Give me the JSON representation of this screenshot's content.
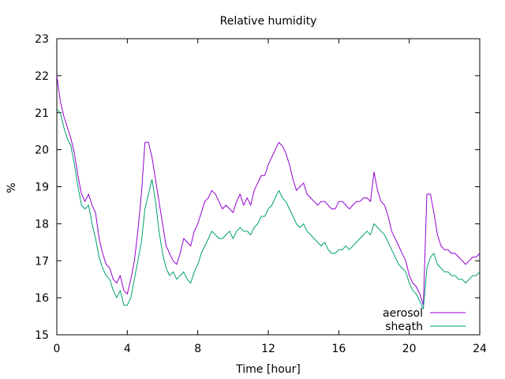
{
  "chart_data": {
    "type": "line",
    "title": "Relative humidity",
    "xlabel": "Time [hour]",
    "ylabel": "%",
    "xlim": [
      0,
      24
    ],
    "ylim": [
      15,
      23
    ],
    "xticks": [
      0,
      4,
      8,
      12,
      16,
      20,
      24
    ],
    "yticks": [
      15,
      16,
      17,
      18,
      19,
      20,
      21,
      22,
      23
    ],
    "grid": false,
    "legend_position": "bottom-right",
    "series": [
      {
        "name": "aerosol",
        "color": "#9400d3",
        "x": [
          0.0,
          0.2,
          0.4,
          0.6,
          0.8,
          1.0,
          1.2,
          1.4,
          1.6,
          1.8,
          2.0,
          2.2,
          2.4,
          2.6,
          2.8,
          3.0,
          3.2,
          3.4,
          3.6,
          3.8,
          4.0,
          4.2,
          4.4,
          4.6,
          4.8,
          5.0,
          5.2,
          5.4,
          5.6,
          5.8,
          6.0,
          6.2,
          6.4,
          6.6,
          6.8,
          7.0,
          7.2,
          7.4,
          7.6,
          7.8,
          8.0,
          8.2,
          8.4,
          8.6,
          8.8,
          9.0,
          9.2,
          9.4,
          9.6,
          9.8,
          10.0,
          10.2,
          10.4,
          10.6,
          10.8,
          11.0,
          11.2,
          11.4,
          11.6,
          11.8,
          12.0,
          12.2,
          12.4,
          12.6,
          12.8,
          13.0,
          13.2,
          13.4,
          13.6,
          13.8,
          14.0,
          14.2,
          14.4,
          14.6,
          14.8,
          15.0,
          15.2,
          15.4,
          15.6,
          15.8,
          16.0,
          16.2,
          16.4,
          16.6,
          16.8,
          17.0,
          17.2,
          17.4,
          17.6,
          17.8,
          18.0,
          18.2,
          18.4,
          18.6,
          18.8,
          19.0,
          19.2,
          19.4,
          19.6,
          19.8,
          20.0,
          20.2,
          20.4,
          20.6,
          20.8,
          21.0,
          21.2,
          21.4,
          21.6,
          21.8,
          22.0,
          22.2,
          22.4,
          22.6,
          22.8,
          23.0,
          23.2,
          23.4,
          23.6,
          23.8,
          24.0
        ],
        "values": [
          22.0,
          21.3,
          20.9,
          20.6,
          20.3,
          19.9,
          19.3,
          18.8,
          18.6,
          18.8,
          18.5,
          18.3,
          17.6,
          17.2,
          16.9,
          16.8,
          16.5,
          16.4,
          16.6,
          16.2,
          16.1,
          16.5,
          17.0,
          17.8,
          18.8,
          20.2,
          20.2,
          19.8,
          19.2,
          18.6,
          18.0,
          17.4,
          17.2,
          17.0,
          16.9,
          17.2,
          17.6,
          17.5,
          17.4,
          17.8,
          18.0,
          18.3,
          18.6,
          18.7,
          18.9,
          18.8,
          18.6,
          18.4,
          18.5,
          18.4,
          18.3,
          18.6,
          18.8,
          18.5,
          18.7,
          18.5,
          18.9,
          19.1,
          19.3,
          19.3,
          19.6,
          19.8,
          20.0,
          20.2,
          20.1,
          19.9,
          19.6,
          19.2,
          18.9,
          19.0,
          19.1,
          18.8,
          18.7,
          18.6,
          18.5,
          18.6,
          18.6,
          18.5,
          18.4,
          18.4,
          18.6,
          18.6,
          18.5,
          18.4,
          18.5,
          18.6,
          18.6,
          18.7,
          18.7,
          18.6,
          19.4,
          18.9,
          18.6,
          18.5,
          18.2,
          17.8,
          17.6,
          17.4,
          17.2,
          17.0,
          16.6,
          16.4,
          16.3,
          16.1,
          15.8,
          18.8,
          18.8,
          18.3,
          17.7,
          17.4,
          17.3,
          17.3,
          17.2,
          17.2,
          17.1,
          17.0,
          16.9,
          17.0,
          17.1,
          17.1,
          17.2
        ]
      },
      {
        "name": "sheath",
        "color": "#009e73",
        "x": [
          0.0,
          0.2,
          0.4,
          0.6,
          0.8,
          1.0,
          1.2,
          1.4,
          1.6,
          1.8,
          2.0,
          2.2,
          2.4,
          2.6,
          2.8,
          3.0,
          3.2,
          3.4,
          3.6,
          3.8,
          4.0,
          4.2,
          4.4,
          4.6,
          4.8,
          5.0,
          5.2,
          5.4,
          5.6,
          5.8,
          6.0,
          6.2,
          6.4,
          6.6,
          6.8,
          7.0,
          7.2,
          7.4,
          7.6,
          7.8,
          8.0,
          8.2,
          8.4,
          8.6,
          8.8,
          9.0,
          9.2,
          9.4,
          9.6,
          9.8,
          10.0,
          10.2,
          10.4,
          10.6,
          10.8,
          11.0,
          11.2,
          11.4,
          11.6,
          11.8,
          12.0,
          12.2,
          12.4,
          12.6,
          12.8,
          13.0,
          13.2,
          13.4,
          13.6,
          13.8,
          14.0,
          14.2,
          14.4,
          14.6,
          14.8,
          15.0,
          15.2,
          15.4,
          15.6,
          15.8,
          16.0,
          16.2,
          16.4,
          16.6,
          16.8,
          17.0,
          17.2,
          17.4,
          17.6,
          17.8,
          18.0,
          18.2,
          18.4,
          18.6,
          18.8,
          19.0,
          19.2,
          19.4,
          19.6,
          19.8,
          20.0,
          20.2,
          20.4,
          20.6,
          20.8,
          21.0,
          21.2,
          21.4,
          21.6,
          21.8,
          22.0,
          22.2,
          22.4,
          22.6,
          22.8,
          23.0,
          23.2,
          23.4,
          23.6,
          23.8,
          24.0
        ],
        "values": [
          21.1,
          21.0,
          20.6,
          20.3,
          20.1,
          19.6,
          19.0,
          18.5,
          18.4,
          18.5,
          18.0,
          17.6,
          17.1,
          16.8,
          16.6,
          16.5,
          16.2,
          16.0,
          16.2,
          15.8,
          15.8,
          16.0,
          16.5,
          17.0,
          17.5,
          18.4,
          18.8,
          19.2,
          18.6,
          17.8,
          17.2,
          16.8,
          16.6,
          16.7,
          16.5,
          16.6,
          16.7,
          16.5,
          16.4,
          16.7,
          16.9,
          17.2,
          17.4,
          17.6,
          17.8,
          17.7,
          17.6,
          17.6,
          17.7,
          17.8,
          17.6,
          17.8,
          17.9,
          17.8,
          17.8,
          17.7,
          17.9,
          18.0,
          18.2,
          18.2,
          18.4,
          18.5,
          18.7,
          18.9,
          18.7,
          18.6,
          18.4,
          18.2,
          18.0,
          17.9,
          18.0,
          17.8,
          17.7,
          17.6,
          17.5,
          17.4,
          17.5,
          17.3,
          17.2,
          17.2,
          17.3,
          17.3,
          17.4,
          17.3,
          17.4,
          17.5,
          17.6,
          17.7,
          17.8,
          17.7,
          18.0,
          17.9,
          17.8,
          17.7,
          17.5,
          17.3,
          17.1,
          16.9,
          16.8,
          16.7,
          16.4,
          16.2,
          16.1,
          15.9,
          15.7,
          16.8,
          17.1,
          17.2,
          16.9,
          16.8,
          16.7,
          16.7,
          16.6,
          16.6,
          16.5,
          16.5,
          16.4,
          16.5,
          16.6,
          16.6,
          16.7
        ]
      }
    ]
  }
}
